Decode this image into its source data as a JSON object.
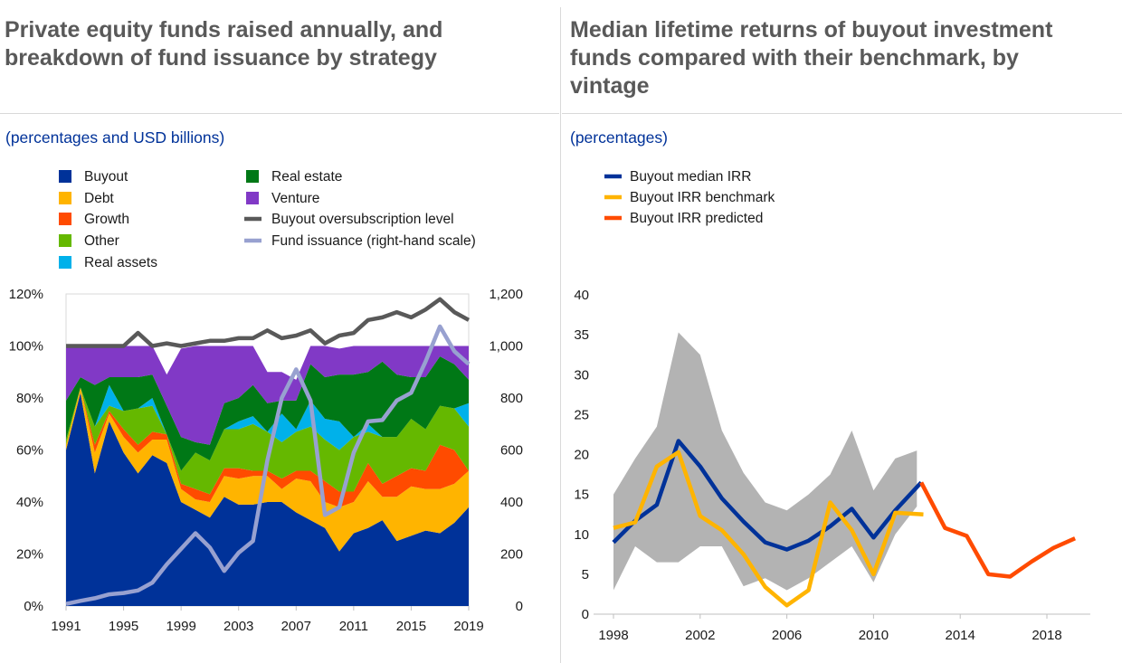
{
  "left": {
    "title_line1": "Private equity funds raised annually, and",
    "title_line2": "breakdown of fund issuance by strategy",
    "subtitle": "(percentages and USD billions)"
  },
  "right": {
    "title_line1": "Median lifetime returns of buyout investment",
    "title_line2": "funds compared with their benchmark, by",
    "title_line3": "vintage",
    "subtitle": "(percentages)"
  },
  "chart_data": [
    {
      "type": "area",
      "x": [
        1991,
        1992,
        1993,
        1994,
        1995,
        1996,
        1997,
        1998,
        1999,
        2000,
        2001,
        2002,
        2003,
        2004,
        2005,
        2006,
        2007,
        2008,
        2009,
        2010,
        2011,
        2012,
        2013,
        2014,
        2015,
        2016,
        2017,
        2018,
        2019
      ],
      "x_ticks": [
        "1991",
        "1995",
        "1999",
        "2003",
        "2007",
        "2011",
        "2015",
        "2019"
      ],
      "y_ticks_left": [
        "0%",
        "20%",
        "40%",
        "60%",
        "80%",
        "100%",
        "120%"
      ],
      "y_ticks_right": [
        "0",
        "200",
        "400",
        "600",
        "800",
        "1,000",
        "1,200"
      ],
      "ylim_left": [
        0,
        120
      ],
      "ylim_right": [
        0,
        1200
      ],
      "legend_position": "top",
      "stacked_series": [
        {
          "name": "Buyout",
          "color": "#003299",
          "values": [
            60,
            82,
            51,
            71,
            59,
            51,
            58,
            55,
            40,
            37,
            34,
            42,
            39,
            39,
            40,
            40,
            36,
            33,
            30,
            21,
            28,
            30,
            33,
            25,
            27,
            29,
            28,
            32,
            38
          ]
        },
        {
          "name": "Debt",
          "color": "#ffb400",
          "values": [
            2,
            2,
            8,
            3,
            6,
            8,
            6,
            9,
            5,
            4,
            6,
            8,
            10,
            11,
            10,
            5,
            13,
            15,
            10,
            17,
            12,
            18,
            9,
            17,
            19,
            16,
            17,
            15,
            14
          ]
        },
        {
          "name": "Growth",
          "color": "#ff4b00",
          "values": [
            0,
            0,
            3,
            1,
            3,
            3,
            3,
            2,
            2,
            4,
            3,
            3,
            4,
            2,
            2,
            4,
            3,
            4,
            8,
            6,
            4,
            7,
            5,
            8,
            7,
            7,
            17,
            13,
            0
          ]
        },
        {
          "name": "Other",
          "color": "#65b800",
          "values": [
            2,
            0,
            7,
            2,
            7,
            14,
            10,
            0,
            5,
            14,
            13,
            15,
            15,
            18,
            15,
            14,
            15,
            17,
            16,
            16,
            21,
            12,
            18,
            15,
            19,
            16,
            15,
            16,
            17
          ]
        },
        {
          "name": "Real assets",
          "color": "#00b1ea",
          "values": [
            0,
            0,
            0,
            8,
            0,
            0,
            3,
            0,
            0,
            0,
            0,
            0,
            3,
            3,
            0,
            11,
            1,
            10,
            8,
            11,
            0,
            3,
            0,
            0,
            0,
            0,
            0,
            0,
            9
          ]
        },
        {
          "name": "Real estate",
          "color": "#007816",
          "values": [
            15,
            4,
            16,
            3,
            13,
            12,
            9,
            11,
            13,
            4,
            6,
            10,
            9,
            12,
            11,
            5,
            11,
            14,
            16,
            18,
            24,
            20,
            29,
            24,
            16,
            20,
            19,
            17,
            9
          ]
        },
        {
          "name": "Venture",
          "color": "#8139c6",
          "values": [
            21,
            12,
            15,
            12,
            12,
            12,
            11,
            12,
            34,
            37,
            38,
            22,
            20,
            15,
            12,
            11,
            8,
            7,
            12,
            10,
            11,
            10,
            6,
            11,
            12,
            12,
            4,
            7,
            13
          ]
        }
      ],
      "line_series": [
        {
          "name": "Buyout oversubscription level",
          "color": "#595959",
          "axis": "left",
          "values": [
            100,
            100,
            100,
            100,
            100,
            105,
            100,
            101,
            100,
            101,
            102,
            102,
            103,
            103,
            106,
            103,
            104,
            106,
            101,
            104,
            105,
            110,
            111,
            113,
            111,
            114,
            118,
            113,
            110
          ]
        },
        {
          "name": "Fund issuance (right-hand scale)",
          "color": "#98a1d0",
          "axis": "right",
          "values": [
            8,
            20,
            30,
            45,
            50,
            60,
            90,
            160,
            220,
            280,
            225,
            135,
            205,
            250,
            560,
            800,
            910,
            790,
            350,
            380,
            590,
            710,
            715,
            790,
            820,
            940,
            1075,
            980,
            930
          ]
        }
      ]
    },
    {
      "type": "line",
      "x_ticks": [
        "1998",
        "2002",
        "2006",
        "2010",
        "2014",
        "2018"
      ],
      "y_ticks": [
        "0",
        "5",
        "10",
        "15",
        "20",
        "25",
        "30",
        "35",
        "40"
      ],
      "xlim": [
        1998,
        2020
      ],
      "ylim": [
        0,
        40
      ],
      "legend_position": "top-left",
      "band": {
        "color": "#b3b3b3",
        "x": [
          1998,
          1999,
          2000,
          2001,
          2002,
          2003,
          2004,
          2005,
          2006,
          2007,
          2008,
          2009,
          2010,
          2011,
          2012
        ],
        "upper": [
          15,
          19.5,
          23.5,
          35.3,
          32.5,
          23,
          17.7,
          14,
          13,
          15,
          17.5,
          23,
          15.5,
          19.5,
          20.5
        ],
        "lower": [
          3,
          8.5,
          6.5,
          6.5,
          8.5,
          8.5,
          3.5,
          4.5,
          3,
          4.5,
          6.5,
          8.5,
          4,
          10,
          13.5
        ]
      },
      "series": [
        {
          "name": "Buyout median IRR",
          "color": "#003299",
          "x": [
            1998,
            1999,
            2000,
            2001,
            2002,
            2003,
            2004,
            2005,
            2006,
            2007,
            2008,
            2009,
            2010,
            2011,
            2012.2
          ],
          "values": [
            9,
            11.7,
            13.7,
            21.7,
            18.5,
            14.5,
            11.6,
            9,
            8.1,
            9.2,
            11,
            13.2,
            9.6,
            13,
            16.5
          ]
        },
        {
          "name": "Buyout IRR benchmark",
          "color": "#ffb400",
          "x": [
            1998,
            1999,
            2000,
            2001,
            2002,
            2003,
            2004,
            2005,
            2006,
            2007,
            2008,
            2009,
            2010,
            2011,
            2012.3
          ],
          "values": [
            10.8,
            11.5,
            18.5,
            20.3,
            12.3,
            10.5,
            7.5,
            3.4,
            1.1,
            3,
            14,
            10.5,
            5,
            12.7,
            12.5
          ]
        },
        {
          "name": "Buyout IRR predicted",
          "color": "#ff4b00",
          "x": [
            2012.2,
            2013.3,
            2014.3,
            2015.3,
            2016.3,
            2017.3,
            2018.3,
            2019.3
          ],
          "values": [
            16.5,
            10.8,
            9.8,
            5,
            4.7,
            6.6,
            8.3,
            9.5
          ]
        }
      ]
    }
  ]
}
